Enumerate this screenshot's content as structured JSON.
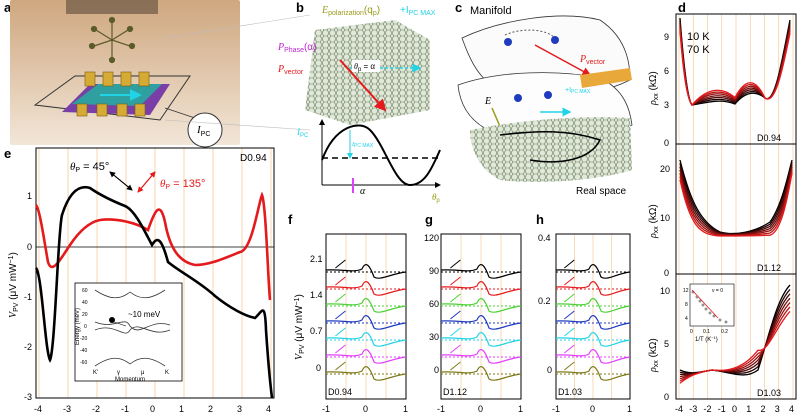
{
  "panel_labels": {
    "a": "a",
    "b": "b",
    "c": "c",
    "d": "d",
    "e": "e",
    "f": "f",
    "g": "g",
    "h": "h"
  },
  "panel_a": {
    "current_label": "I",
    "current_sub": "PC"
  },
  "panel_b": {
    "e_pol_label": "E",
    "e_pol_sub": "polarization",
    "e_pol_q": "(q",
    "e_pol_q_sub": "p",
    "e_pol_q_end": ")",
    "i_max_label": "+I",
    "i_max_sub": "PC MAX",
    "p_phase_label": "P",
    "p_phase_sub": "Phase",
    "p_phase_alpha": "(α)",
    "p_vector_label": "P",
    "p_vector_sub": "vector",
    "theta_eq": "θ",
    "theta_eq_sub": "p",
    "theta_eq_rhs": " = α",
    "ipc_axis": "I",
    "ipc_axis_sub": "PC",
    "ipc_max_small": "I",
    "ipc_max_small_sub": "PC MAX",
    "alpha_mark": "α",
    "theta_axis": "θ",
    "theta_axis_sub": "p"
  },
  "panel_c": {
    "manifold_label": "Manifold",
    "p_vector_label": "P",
    "p_vector_sub": "vector",
    "e_label": "E",
    "i_max_label": "+I",
    "i_max_sub": "PC MAX",
    "real_space_label": "Real space"
  },
  "panel_d": {
    "top_y_ticks": [
      "9",
      "6",
      "3",
      "0"
    ],
    "mid_y_ticks": [
      "20",
      "10",
      "0"
    ],
    "bot_y_ticks": [
      "10",
      "5",
      "0"
    ],
    "x_ticks": [
      "-4",
      "-3",
      "-2",
      "-1",
      "0",
      "1",
      "2",
      "3",
      "4"
    ],
    "ylabel": "ρ",
    "ylabel_sub": "xx",
    "ylabel_unit": " (kΩ)",
    "legend_10k": "10 K",
    "legend_70k": "70 K",
    "tags": [
      "D0.94",
      "D1.12",
      "D1.03"
    ],
    "inset": {
      "y_ticks": [
        "12",
        "8",
        "4"
      ],
      "x_ticks": [
        "0",
        "0.1",
        "0.2"
      ],
      "xlabel": "1/T (K",
      "xlabel_sup": "−1",
      "xlabel_end": ")",
      "nu_label": "ν = 0"
    }
  },
  "panel_e": {
    "y_ticks": [
      "1",
      "0",
      "-1",
      "-2",
      "-3"
    ],
    "x_ticks": [
      "-4",
      "-3",
      "-2",
      "-1",
      "0",
      "1",
      "2",
      "3",
      "4"
    ],
    "ylabel": "V",
    "ylabel_sub": "PV",
    "ylabel_unit": " (μV mW",
    "ylabel_sup": "−1",
    "ylabel_end": ")",
    "theta45": "θ",
    "theta45_sub": "P",
    "theta45_val": " = 45°",
    "theta135": "θ",
    "theta135_sub": "P",
    "theta135_val": " = 135°",
    "tag": "D0.94",
    "inset": {
      "y_ticks": [
        "60",
        "40",
        "20",
        "0",
        "-20",
        "-40",
        "-60"
      ],
      "ylabel": "Energy (meV)",
      "xlabel": "Momentum",
      "x_ticks": [
        "K'",
        "γ",
        "μ",
        "K"
      ],
      "gap_label": "~10 meV"
    }
  },
  "panel_f": {
    "y_ticks": [
      "2.1",
      "1.4",
      "0.7",
      "0"
    ],
    "x_ticks": [
      "-1",
      "0",
      "1"
    ],
    "ylabel": "V",
    "ylabel_sub": "PV",
    "ylabel_unit": " (μV mW",
    "ylabel_sup": "−1",
    "ylabel_end": ")",
    "tag": "D0.94"
  },
  "panel_g": {
    "y_ticks": [
      "120",
      "90",
      "60",
      "30",
      "0"
    ],
    "x_ticks": [
      "-1",
      "0",
      "1"
    ],
    "tag": "D1.12"
  },
  "panel_h": {
    "y_ticks": [
      "0.4",
      "0.2",
      "0"
    ],
    "x_ticks": [
      "-1",
      "0",
      "1"
    ],
    "tag": "D1.03"
  },
  "colors": {
    "black": "#000000",
    "red": "#e41a1c",
    "green": "#4cd137",
    "blue": "#1f3bbf",
    "cyan": "#22d3e6",
    "magenta": "#e040fb",
    "olive": "#7f7a1a",
    "dark_red": "#a31515",
    "pink_tag": "#c026d3",
    "blue_tag": "#1d4ed8",
    "grid_orange": "#f5c28a"
  },
  "traces_order": [
    "black",
    "red",
    "green",
    "blue",
    "cyan",
    "magenta",
    "olive"
  ]
}
